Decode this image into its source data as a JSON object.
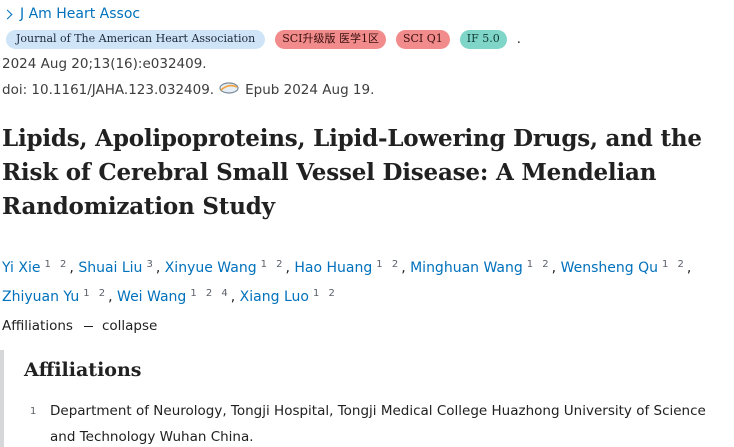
{
  "journal": {
    "name": "J Am Heart Assoc"
  },
  "badges": [
    {
      "label": "Journal of The American Heart Association",
      "kind": "journal"
    },
    {
      "label": "SCI升级版 医学1区",
      "kind": "red"
    },
    {
      "label": "SCI Q1",
      "kind": "red"
    },
    {
      "label": "IF 5.0",
      "kind": "teal"
    }
  ],
  "badges_trailing": ".",
  "citation": {
    "date_volume": "2024 Aug 20;13(16):e032409.",
    "doi": "doi: 10.1161/JAHA.123.032409.",
    "epub": "Epub 2024 Aug 19."
  },
  "title": "Lipids, Apolipoproteins, Lipid-Lowering Drugs, and the Risk of Cerebral Small Vessel Disease: A Mendelian Randomization Study",
  "authors": [
    {
      "name": "Yi Xie",
      "affs": "1 2"
    },
    {
      "name": "Shuai Liu",
      "affs": "3"
    },
    {
      "name": "Xinyue Wang",
      "affs": "1 2"
    },
    {
      "name": "Hao Huang",
      "affs": "1 2"
    },
    {
      "name": "Minghuan Wang",
      "affs": "1 2"
    },
    {
      "name": "Wensheng Qu",
      "affs": "1 2"
    },
    {
      "name": "Zhiyuan Yu",
      "affs": "1 2"
    },
    {
      "name": "Wei Wang",
      "affs": "1 2 4"
    },
    {
      "name": "Xiang Luo",
      "affs": "1 2"
    }
  ],
  "affiliations_toggle": {
    "label": "Affiliations",
    "action": "collapse"
  },
  "affiliations": {
    "heading": "Affiliations",
    "items": [
      {
        "num": "1",
        "text": "Department of Neurology, Tongji Hospital, Tongji Medical College Huazhong University of Science and Technology Wuhan China."
      }
    ]
  },
  "colors": {
    "link": "#0071bc",
    "badge_journal": "#cfe4f7",
    "badge_red": "#f28b8b",
    "badge_teal": "#7fd6c8"
  }
}
